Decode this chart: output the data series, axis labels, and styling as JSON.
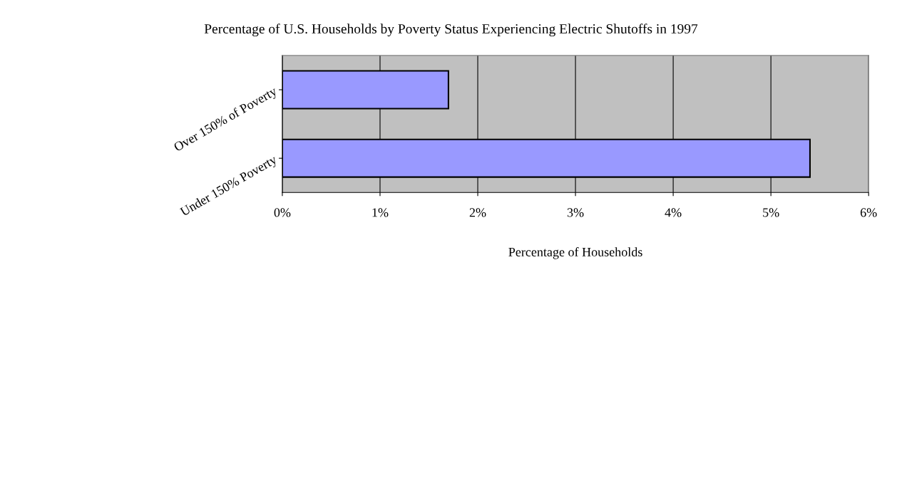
{
  "chart_data": {
    "type": "bar",
    "orientation": "horizontal",
    "title": "Percentage of U.S. Households by Poverty Status Experiencing Electric Shutoffs in 1997",
    "xlabel": "Percentage of Households",
    "categories": [
      "Over 150% of Poverty",
      "Under 150% Poverty"
    ],
    "values": [
      1.7,
      5.4
    ],
    "color": "#9999ff",
    "xlim": [
      0,
      6
    ],
    "xticks": [
      {
        "value": 0,
        "label": "0%"
      },
      {
        "value": 1,
        "label": "1%"
      },
      {
        "value": 2,
        "label": "2%"
      },
      {
        "value": 3,
        "label": "3%"
      },
      {
        "value": 4,
        "label": "4%"
      },
      {
        "value": 5,
        "label": "5%"
      },
      {
        "value": 6,
        "label": "6%"
      }
    ],
    "grid": "x",
    "legend": false
  }
}
